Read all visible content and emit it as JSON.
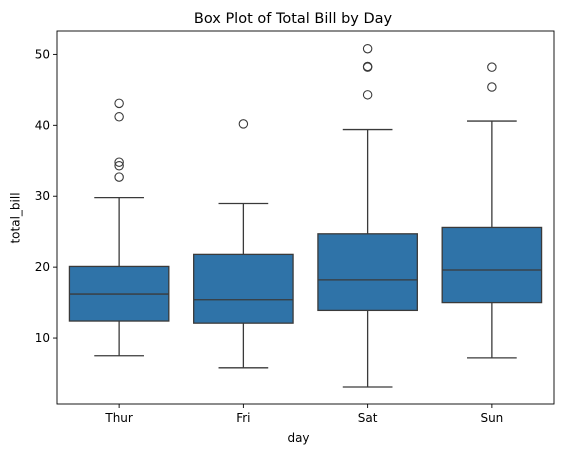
{
  "chart_data": {
    "type": "box",
    "title": "Box Plot of Total Bill by Day",
    "xlabel": "day",
    "ylabel": "total_bill",
    "categories": [
      "Thur",
      "Fri",
      "Sat",
      "Sun"
    ],
    "ylim": [
      0.7,
      53.3
    ],
    "yticks": [
      10,
      20,
      30,
      40,
      50
    ],
    "grid": false,
    "box_color": "#2f73a8",
    "line_color": "#3a3a3a",
    "boxes": [
      {
        "category": "Thur",
        "whisker_low": 7.5,
        "q1": 12.4,
        "median": 16.2,
        "q3": 20.1,
        "whisker_high": 29.8,
        "outliers": [
          32.7,
          34.3,
          34.8,
          41.2,
          43.1
        ]
      },
      {
        "category": "Fri",
        "whisker_low": 5.8,
        "q1": 12.1,
        "median": 15.4,
        "q3": 21.8,
        "whisker_high": 28.97,
        "outliers": [
          40.2
        ]
      },
      {
        "category": "Sat",
        "whisker_low": 3.1,
        "q1": 13.9,
        "median": 18.2,
        "q3": 24.7,
        "whisker_high": 39.4,
        "outliers": [
          44.3,
          48.2,
          48.3,
          50.8
        ]
      },
      {
        "category": "Sun",
        "whisker_low": 7.2,
        "q1": 15.0,
        "median": 19.6,
        "q3": 25.6,
        "whisker_high": 40.6,
        "outliers": [
          45.4,
          48.2
        ]
      }
    ]
  }
}
